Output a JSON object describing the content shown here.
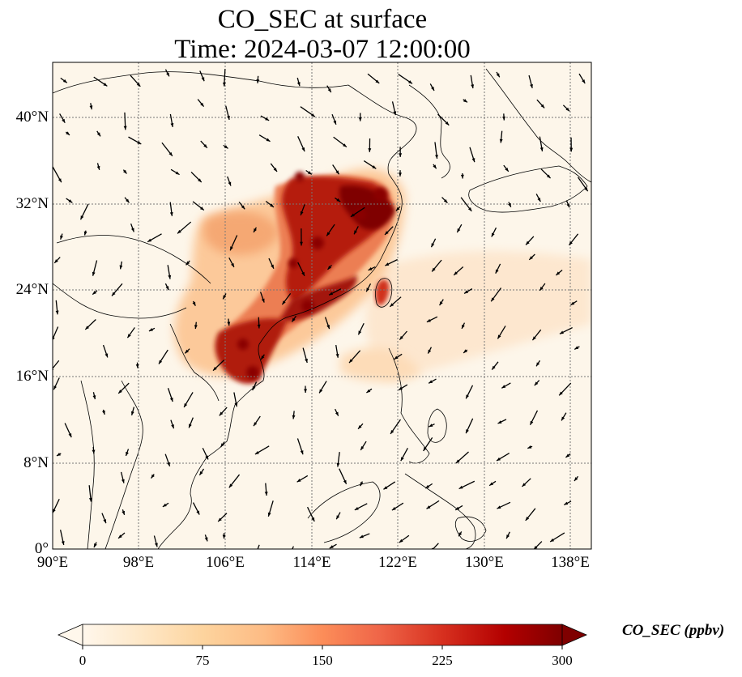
{
  "title": {
    "line1": "CO_SEC at surface",
    "line2": "Time: 2024-03-07 12:00:00"
  },
  "map": {
    "variable": "CO_SEC",
    "level": "surface",
    "projection": "lat-lon",
    "lon_range": [
      90,
      140
    ],
    "lat_range": [
      0,
      45
    ],
    "gridlines": "dotted",
    "lat_ticks": [
      "0°",
      "8°N",
      "16°N",
      "24°N",
      "32°N",
      "40°N"
    ],
    "lon_ticks": [
      "90°E",
      "98°E",
      "106°E",
      "114°E",
      "122°E",
      "130°E",
      "138°E"
    ],
    "plumes": [
      {
        "region": "Yangtze River Delta / East China",
        "level": "very high"
      },
      {
        "region": "Southern China / Guangdong",
        "level": "high"
      },
      {
        "region": "Northern Vietnam / Gulf of Tonkin",
        "level": "high"
      },
      {
        "region": "Taiwan",
        "level": "high"
      },
      {
        "region": "Sichuan Basin",
        "level": "moderate"
      },
      {
        "region": "Outflow over Western Pacific",
        "level": "low"
      }
    ],
    "wind_vectors": "shown as black arrows"
  },
  "colorbar": {
    "label": "CO_SEC (ppbv)",
    "colormap": "OrRd",
    "extend": "both",
    "ticks": [
      "0",
      "75",
      "150",
      "225",
      "300"
    ],
    "colors": [
      "#fff7ec",
      "#fee8c8",
      "#fdd49e",
      "#fdbb84",
      "#fc8d59",
      "#ef6548",
      "#d7301f",
      "#b30000",
      "#7f0000"
    ]
  }
}
